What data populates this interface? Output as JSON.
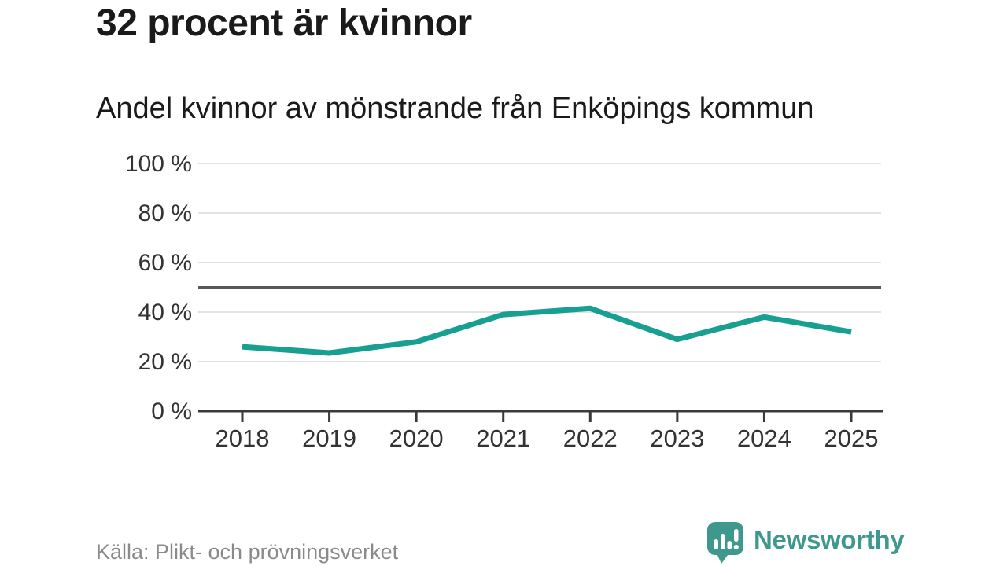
{
  "header": {
    "title": "32 procent är kvinnor",
    "subtitle": "Andel kvinnor av mönstrande från Enköpings kommun"
  },
  "chart_data": {
    "type": "line",
    "x": [
      "2018",
      "2019",
      "2020",
      "2021",
      "2022",
      "2023",
      "2024",
      "2025"
    ],
    "series": [
      {
        "name": "Andel kvinnor av mönstrande",
        "values": [
          26,
          23.5,
          28,
          39,
          41.5,
          29,
          38,
          32
        ]
      }
    ],
    "ylabel": "",
    "xlabel": "",
    "ylim": [
      0,
      100
    ],
    "yticks": [
      0,
      20,
      40,
      60,
      80,
      100
    ],
    "ytick_labels": [
      "0 %",
      "20 %",
      "40 %",
      "60 %",
      "80 %",
      "100 %"
    ],
    "reference_line": 50,
    "grid": "horizontal",
    "legend": "none",
    "line_color": "#17a091"
  },
  "footer": {
    "source": "Källa: Plikt- och prövningsverket",
    "brand": "Newsworthy"
  },
  "colors": {
    "accent": "#17a091",
    "brand": "#3f988d",
    "grid": "#e3e3e3",
    "reference": "#58585a",
    "axis": "#3a3a3a",
    "tick_text": "#333333",
    "muted_text": "#8a8a8a",
    "heading_text": "#1a1a1a"
  }
}
